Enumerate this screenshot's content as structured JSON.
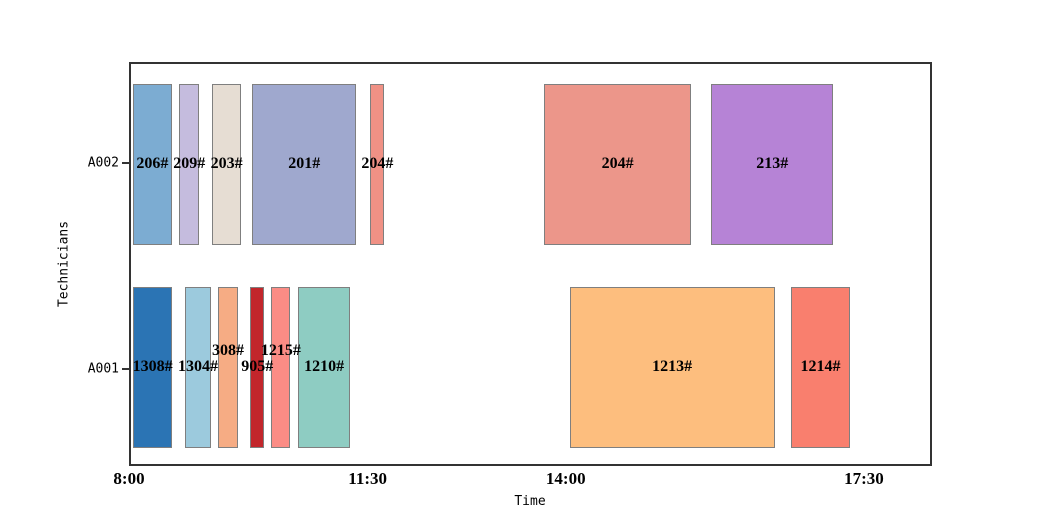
{
  "chart_data": {
    "type": "gantt",
    "title": "",
    "xlabel": "Time",
    "ylabel": "Technicians",
    "x_range": [
      "8:00",
      "17:30"
    ],
    "grid": false,
    "legend": false,
    "x_axis": {
      "ticks": [
        {
          "label": "8:00",
          "pos_pct": 0
        },
        {
          "label": "11:30",
          "pos_pct": 29.72
        },
        {
          "label": "14:00",
          "pos_pct": 54.39
        },
        {
          "label": "17:30",
          "pos_pct": 91.53
        }
      ]
    },
    "rows": [
      {
        "name": "A002",
        "center_pct": 25.12,
        "band_top_pct": 4.95,
        "band_height_pct": 40.35
      },
      {
        "name": "A001",
        "center_pct": 75.87,
        "band_top_pct": 55.69,
        "band_height_pct": 40.35
      }
    ],
    "tasks": [
      {
        "label": "206#",
        "technician": "A002",
        "start": "8:00",
        "end": "8:35",
        "color": "#7cacd2",
        "left_pct": 0.25,
        "width_pct": 4.86,
        "label_raised": false
      },
      {
        "label": "209#",
        "technician": "A002",
        "start": "8:45",
        "end": "9:00",
        "color": "#c5bcde",
        "left_pct": 6.04,
        "width_pct": 2.49,
        "label_raised": false
      },
      {
        "label": "203#",
        "technician": "A002",
        "start": "9:10",
        "end": "9:35",
        "color": "#e6ddd3",
        "left_pct": 10.16,
        "width_pct": 3.61,
        "label_raised": false
      },
      {
        "label": "201#",
        "technician": "A002",
        "start": "9:45",
        "end": "11:20",
        "color": "#9fa8ce",
        "left_pct": 15.14,
        "width_pct": 13.08,
        "label_raised": false
      },
      {
        "label": "204#",
        "technician": "A002",
        "start": "11:30",
        "end": "11:40",
        "color": "#f09185",
        "left_pct": 29.97,
        "width_pct": 1.74,
        "label_raised": false
      },
      {
        "label": "204#",
        "technician": "A002",
        "start": "13:45",
        "end": "15:30",
        "color": "#ec968a",
        "left_pct": 51.65,
        "width_pct": 18.5,
        "label_raised": false
      },
      {
        "label": "213#",
        "technician": "A002",
        "start": "15:45",
        "end": "17:10",
        "color": "#b683d6",
        "left_pct": 72.59,
        "width_pct": 15.33,
        "label_raised": false
      },
      {
        "label": "1308#",
        "technician": "A001",
        "start": "8:00",
        "end": "8:35",
        "color": "#2b74b4",
        "left_pct": 0.25,
        "width_pct": 4.92,
        "label_raised": false
      },
      {
        "label": "1304#",
        "technician": "A001",
        "start": "8:50",
        "end": "9:10",
        "color": "#9ccadd",
        "left_pct": 6.73,
        "width_pct": 3.3,
        "label_raised": false
      },
      {
        "label": "308#",
        "technician": "A001",
        "start": "9:15",
        "end": "9:35",
        "color": "#f6ac84",
        "left_pct": 10.9,
        "width_pct": 2.49,
        "label_raised": true
      },
      {
        "label": "905#",
        "technician": "A001",
        "start": "9:45",
        "end": "10:00",
        "color": "#c2262b",
        "left_pct": 14.89,
        "width_pct": 1.81,
        "label_raised": false
      },
      {
        "label": "1215#",
        "technician": "A001",
        "start": "10:05",
        "end": "10:20",
        "color": "#fb8c85",
        "left_pct": 17.57,
        "width_pct": 2.37,
        "label_raised": true
      },
      {
        "label": "1210#",
        "technician": "A001",
        "start": "10:30",
        "end": "11:15",
        "color": "#8eccc2",
        "left_pct": 20.87,
        "width_pct": 6.6,
        "label_raised": false
      },
      {
        "label": "1213#",
        "technician": "A001",
        "start": "14:00",
        "end": "16:30",
        "color": "#fdbe7e",
        "left_pct": 54.89,
        "width_pct": 25.67,
        "label_raised": false
      },
      {
        "label": "1214#",
        "technician": "A001",
        "start": "16:40",
        "end": "17:20",
        "color": "#f97f6e",
        "left_pct": 82.55,
        "width_pct": 7.48,
        "label_raised": false
      }
    ]
  },
  "colors": {
    "background": "#ffffff",
    "spine": "#333333",
    "bar_border": "#7f7f7f",
    "text": "#000000"
  }
}
